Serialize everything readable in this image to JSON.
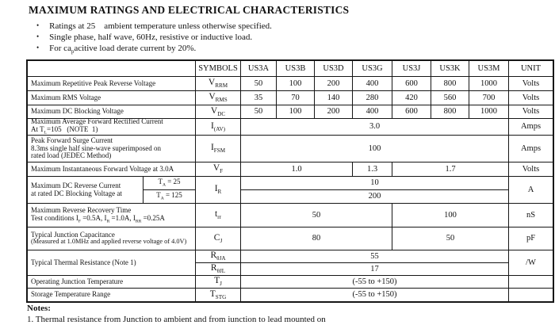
{
  "colors": {
    "ink": "#131313",
    "paper": "#ffffff"
  },
  "title": "MAXIMUM RATINGS AND ELECTRICAL CHARACTERISTICS",
  "bullets": {
    "b1": "Ratings at 25    ambient temperature unless otherwise specified.",
    "b2": "Single phase, half wave, 60Hz, resistive or inductive load.",
    "b3": [
      {
        "t": "For ca"
      },
      {
        "s": "p"
      },
      {
        "t": "acitive load derate current by 20%."
      }
    ]
  },
  "table": {
    "headers": {
      "param": "",
      "symbols": "SYMBOLS",
      "cols": [
        "US3A",
        "US3B",
        "US3D",
        "US3G",
        "US3J",
        "US3K",
        "US3M"
      ],
      "unit": "UNIT"
    },
    "rows": {
      "vrrm": {
        "param": "Maximum Repetitive Peak Reverse Voltage",
        "sym": [
          {
            "t": "V"
          },
          {
            "s": "RRM"
          }
        ],
        "vals": [
          "50",
          "100",
          "200",
          "400",
          "600",
          "800",
          "1000"
        ],
        "unit": "Volts"
      },
      "vrms": {
        "param": "Maximum RMS Voltage",
        "sym": [
          {
            "t": "V"
          },
          {
            "s": "RMS"
          }
        ],
        "vals": [
          "35",
          "70",
          "140",
          "280",
          "420",
          "560",
          "700"
        ],
        "unit": "Volts"
      },
      "vdc": {
        "param": "Maximum DC Blocking Voltage",
        "sym": [
          {
            "t": "V"
          },
          {
            "s": "DC"
          }
        ],
        "vals": [
          "50",
          "100",
          "200",
          "400",
          "600",
          "800",
          "1000"
        ],
        "unit": "Volts"
      },
      "iav": {
        "param1": "Maximum Average Forward Rectified Current",
        "param2": [
          {
            "t": "At T"
          },
          {
            "s": "L"
          },
          {
            "t": "=105   (NOTE  1)"
          }
        ],
        "sym": [
          {
            "t": "I"
          },
          {
            "s": "(AV)"
          }
        ],
        "val": "3.0",
        "unit": "Amps"
      },
      "ifsm": {
        "param1": "Peak Forward Surge Current",
        "param2": "8.3ms single half sine-wave superimposed on",
        "param3": "rated load (JEDEC Method)",
        "sym": [
          {
            "t": "I"
          },
          {
            "s": "FSM"
          }
        ],
        "val": "100",
        "unit": "Amps"
      },
      "vf": {
        "param": "Maximum Instantaneous Forward Voltage at 3.0A",
        "sym": [
          {
            "t": "V"
          },
          {
            "s": "F"
          }
        ],
        "v1": "1.0",
        "v2": "1.3",
        "v3": "1.7",
        "unit": "Volts"
      },
      "ir": {
        "param1": "Maximum DC Reverse Current",
        "param2": "at rated DC Blocking Voltage at",
        "ta1": [
          {
            "t": "T"
          },
          {
            "s": "A"
          },
          {
            "t": " = 25"
          }
        ],
        "ta2": [
          {
            "t": "T"
          },
          {
            "s": "A"
          },
          {
            "t": " = 125"
          }
        ],
        "sym": [
          {
            "t": "I"
          },
          {
            "s": "R"
          }
        ],
        "v1": "10",
        "v2": "200",
        "unit": "A"
      },
      "trr": {
        "param1": "Maximum Reverse Recovery Time",
        "param2": [
          {
            "t": "Test conditions I"
          },
          {
            "s": "F"
          },
          {
            "t": " =0.5A, I"
          },
          {
            "s": "R"
          },
          {
            "t": " =1.0A, I"
          },
          {
            "s": "RR"
          },
          {
            "t": " =0.25A"
          }
        ],
        "sym": [
          {
            "t": "t"
          },
          {
            "s": "rr"
          }
        ],
        "v1": "50",
        "v2": "100",
        "unit": "nS"
      },
      "cj": {
        "param1": "Typical Junction Capacitance",
        "param2": "(Measured at 1.0MHz and applied reverse voltage of 4.0V)",
        "sym": [
          {
            "t": "C"
          },
          {
            "s": "J"
          }
        ],
        "v1": "80",
        "v2": "50",
        "unit": "pF"
      },
      "thermal": {
        "param": "Typical Thermal Resistance (Note 1)",
        "sym1": [
          {
            "t": "R"
          },
          {
            "s": "θJA"
          }
        ],
        "sym2": [
          {
            "t": "R"
          },
          {
            "s": "θJL"
          }
        ],
        "v1": "55",
        "v2": "17",
        "unit": "/W"
      },
      "tj": {
        "param": "Operating Junction Temperature",
        "sym": [
          {
            "t": "T"
          },
          {
            "s": "J"
          }
        ],
        "val": "(-55 to +150)",
        "unit": ""
      },
      "tstg": {
        "param": "Storage Temperature Range",
        "sym": [
          {
            "t": "T"
          },
          {
            "s": "STG"
          }
        ],
        "val": "(-55 to +150)",
        "unit": ""
      }
    }
  },
  "notes": {
    "label": "Notes:",
    "n1": "1. Thermal resistance from Junction to ambient and from iunction to lead mounted on"
  }
}
